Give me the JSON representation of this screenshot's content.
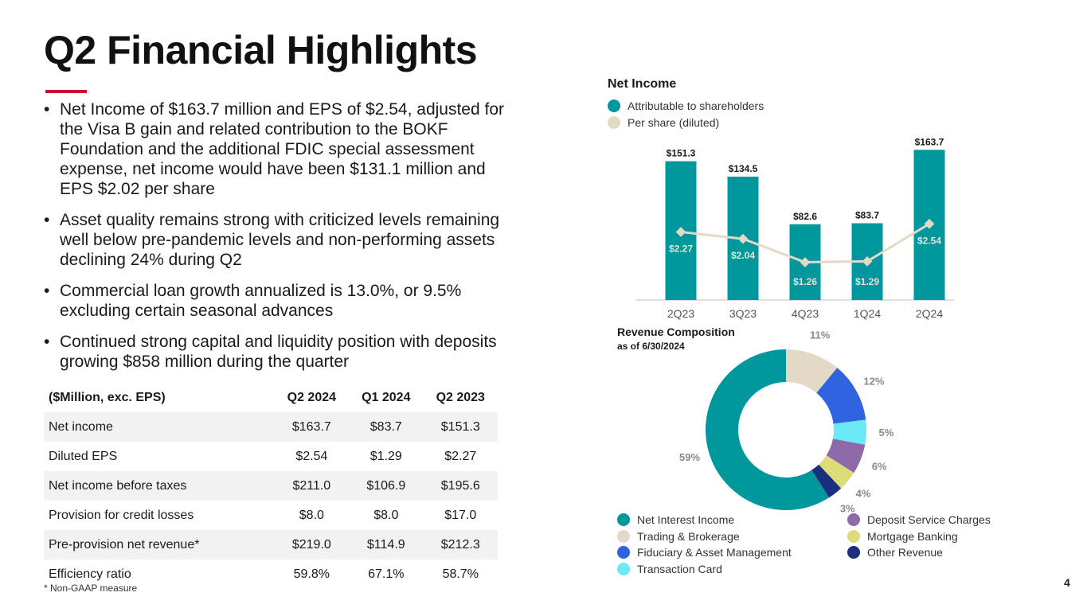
{
  "page": {
    "title": "Q2 Financial Highlights",
    "page_number": "4",
    "footnote": "*  Non-GAAP measure",
    "accent_color": "#c8102e"
  },
  "bullets": [
    "Net Income of $163.7 million and EPS of $2.54, adjusted for the Visa B gain and related contribution to the BOKF Foundation and the additional FDIC special assessment expense, net income would have been $131.1 million and EPS $2.02 per share",
    "Asset quality remains strong with criticized levels remaining well below pre-pandemic levels and non-performing assets declining 24% during Q2",
    "Commercial loan growth annualized is 13.0%, or 9.5% excluding certain seasonal advances",
    "Continued strong capital and liquidity position with deposits growing $858 million during the quarter"
  ],
  "bullet_marker": "•",
  "table": {
    "headers": [
      "($Million, exc. EPS)",
      "Q2 2024",
      "Q1 2024",
      "Q2 2023"
    ],
    "rows": [
      [
        "Net income",
        "$163.7",
        "$83.7",
        "$151.3"
      ],
      [
        "Diluted EPS",
        "$2.54",
        "$1.29",
        "$2.27"
      ],
      [
        "Net income before taxes",
        "$211.0",
        "$106.9",
        "$195.6"
      ],
      [
        "Provision for credit losses",
        "$8.0",
        "$8.0",
        "$17.0"
      ],
      [
        "Pre-provision net revenue*",
        "$219.0",
        "$114.9",
        "$212.3"
      ],
      [
        "Efficiency ratio",
        "59.8%",
        "67.1%",
        "58.7%"
      ]
    ]
  },
  "chart_data": [
    {
      "type": "bar",
      "title": "Net Income",
      "categories": [
        "2Q23",
        "3Q23",
        "4Q23",
        "1Q24",
        "2Q24"
      ],
      "series": [
        {
          "name": "Attributable to shareholders",
          "kind": "bar",
          "values": [
            151.3,
            134.5,
            82.6,
            83.7,
            163.7
          ],
          "labels": [
            "$151.3",
            "$134.5",
            "$82.6",
            "$83.7",
            "$163.7"
          ],
          "color": "#00979d"
        },
        {
          "name": "Per share (diluted)",
          "kind": "line",
          "values": [
            2.27,
            2.04,
            1.26,
            1.29,
            2.54
          ],
          "labels": [
            "$2.27",
            "$2.04",
            "$1.26",
            "$1.29",
            "$2.54"
          ],
          "color": "#e3d9c6"
        }
      ],
      "ylim": [
        0,
        170
      ],
      "y2lim": [
        0,
        5.2
      ],
      "legend": "top-left"
    },
    {
      "type": "pie",
      "title": "Revenue Composition",
      "subtitle": "as of 6/30/2024",
      "slices": [
        {
          "name": "Net Interest Income",
          "value": 59,
          "label": "59%",
          "color": "#00979d"
        },
        {
          "name": "Trading & Brokerage",
          "value": 11,
          "label": "11%",
          "color": "#e3d9c6"
        },
        {
          "name": "Fiduciary & Asset Management",
          "value": 12,
          "label": "12%",
          "color": "#2f63e0"
        },
        {
          "name": "Transaction Card",
          "value": 5,
          "label": "5%",
          "color": "#6be9f7"
        },
        {
          "name": "Deposit Service Charges",
          "value": 6,
          "label": "6%",
          "color": "#8e6aa8"
        },
        {
          "name": "Mortgage Banking",
          "value": 4,
          "label": "4%",
          "color": "#dcdc78"
        },
        {
          "name": "Other Revenue",
          "value": 3,
          "label": "3%",
          "color": "#1c2f7e"
        }
      ],
      "legend": "bottom"
    }
  ]
}
